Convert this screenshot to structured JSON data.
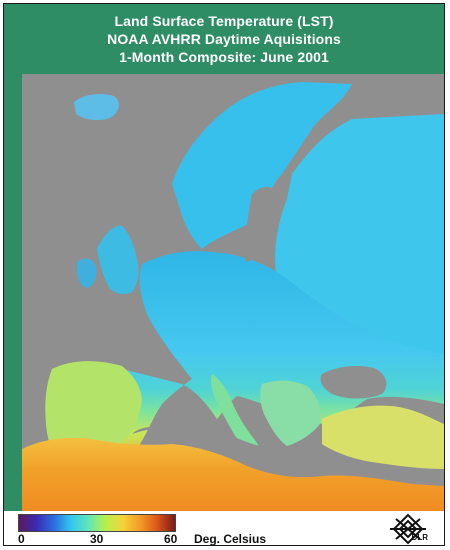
{
  "title": {
    "line1": "Land Surface Temperature (LST)",
    "line2": "NOAA AVHRR Daytime Aquisitions",
    "line3": "1-Month Composite: June 2001"
  },
  "legend": {
    "ticks": [
      "0",
      "30",
      "60"
    ],
    "unit": "Deg. Celsius",
    "range_celsius": [
      0,
      60
    ],
    "colormap": [
      "#5b1a5e",
      "#3a2bb0",
      "#2c6de0",
      "#33c7ee",
      "#5fe6b8",
      "#b9f04a",
      "#f5d23a",
      "#f39a25",
      "#d9541a",
      "#7a1a1a"
    ]
  },
  "logo": {
    "text": "DLR"
  },
  "colors": {
    "background_frame": "#2f8d66",
    "sea": "#8f8f8f",
    "land_north": "#3ec8e8",
    "land_mid": "#66e0b6",
    "land_south": "#e8a030",
    "africa": "#f2a52a"
  }
}
